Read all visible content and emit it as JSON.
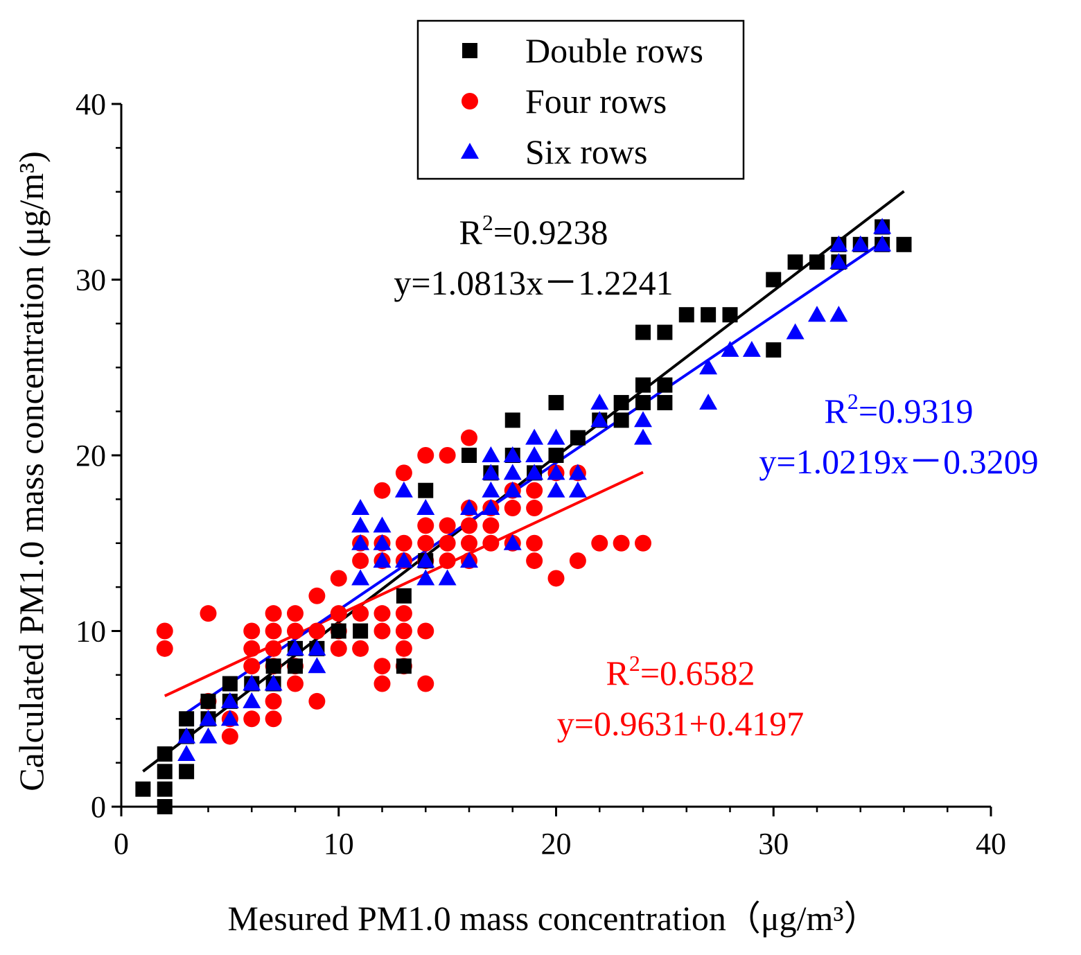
{
  "chart_data": {
    "type": "scatter",
    "xlabel": "Mesured PM1.0  mass concentration（μg/m³）",
    "ylabel": "Calculated PM1.0 mass concentration (μg/m³)",
    "xlim": [
      0,
      40
    ],
    "ylim": [
      0,
      40
    ],
    "xticks": [
      0,
      10,
      20,
      30,
      40
    ],
    "yticks": [
      0,
      10,
      20,
      30,
      40
    ],
    "grid": false,
    "legend_position": "top-center",
    "series": [
      {
        "name": "Double rows",
        "marker": "square",
        "color": "#000000",
        "points": [
          [
            1,
            1
          ],
          [
            2,
            0
          ],
          [
            2,
            1
          ],
          [
            2,
            2
          ],
          [
            2,
            3
          ],
          [
            3,
            2
          ],
          [
            3,
            4
          ],
          [
            3,
            5
          ],
          [
            4,
            5
          ],
          [
            4,
            6
          ],
          [
            5,
            6
          ],
          [
            5,
            7
          ],
          [
            6,
            7
          ],
          [
            7,
            7
          ],
          [
            7,
            8
          ],
          [
            8,
            8
          ],
          [
            8,
            9
          ],
          [
            9,
            9
          ],
          [
            10,
            10
          ],
          [
            11,
            10
          ],
          [
            13,
            8
          ],
          [
            13,
            12
          ],
          [
            14,
            14
          ],
          [
            14,
            18
          ],
          [
            16,
            20
          ],
          [
            17,
            19
          ],
          [
            18,
            22
          ],
          [
            18,
            20
          ],
          [
            19,
            19
          ],
          [
            20,
            20
          ],
          [
            20,
            23
          ],
          [
            21,
            21
          ],
          [
            22,
            22
          ],
          [
            23,
            22
          ],
          [
            23,
            23
          ],
          [
            24,
            23
          ],
          [
            24,
            24
          ],
          [
            24,
            27
          ],
          [
            25,
            23
          ],
          [
            25,
            24
          ],
          [
            25,
            27
          ],
          [
            26,
            28
          ],
          [
            27,
            28
          ],
          [
            28,
            28
          ],
          [
            30,
            26
          ],
          [
            30,
            30
          ],
          [
            31,
            31
          ],
          [
            32,
            31
          ],
          [
            33,
            31
          ],
          [
            33,
            32
          ],
          [
            34,
            32
          ],
          [
            35,
            32
          ],
          [
            35,
            33
          ],
          [
            36,
            32
          ]
        ],
        "fit_line": {
          "x": [
            1,
            36
          ],
          "r2_label": "R²=0.9238",
          "equation": "y=1.0813x－1.2241"
        }
      },
      {
        "name": "Four rows",
        "marker": "circle",
        "color": "#ff0000",
        "points": [
          [
            2,
            9
          ],
          [
            2,
            10
          ],
          [
            4,
            6
          ],
          [
            4,
            11
          ],
          [
            5,
            4
          ],
          [
            5,
            5
          ],
          [
            6,
            5
          ],
          [
            6,
            8
          ],
          [
            6,
            9
          ],
          [
            6,
            10
          ],
          [
            7,
            5
          ],
          [
            7,
            6
          ],
          [
            7,
            8
          ],
          [
            7,
            9
          ],
          [
            7,
            10
          ],
          [
            7,
            11
          ],
          [
            8,
            7
          ],
          [
            8,
            8
          ],
          [
            8,
            10
          ],
          [
            8,
            11
          ],
          [
            9,
            6
          ],
          [
            9,
            10
          ],
          [
            9,
            12
          ],
          [
            10,
            9
          ],
          [
            10,
            10
          ],
          [
            10,
            11
          ],
          [
            10,
            13
          ],
          [
            11,
            9
          ],
          [
            11,
            11
          ],
          [
            11,
            14
          ],
          [
            11,
            15
          ],
          [
            12,
            7
          ],
          [
            12,
            8
          ],
          [
            12,
            10
          ],
          [
            12,
            11
          ],
          [
            12,
            14
          ],
          [
            12,
            15
          ],
          [
            12,
            18
          ],
          [
            13,
            8
          ],
          [
            13,
            9
          ],
          [
            13,
            10
          ],
          [
            13,
            11
          ],
          [
            13,
            14
          ],
          [
            13,
            15
          ],
          [
            13,
            19
          ],
          [
            14,
            7
          ],
          [
            14,
            10
          ],
          [
            14,
            14
          ],
          [
            14,
            15
          ],
          [
            14,
            16
          ],
          [
            14,
            20
          ],
          [
            15,
            14
          ],
          [
            15,
            15
          ],
          [
            15,
            16
          ],
          [
            15,
            20
          ],
          [
            16,
            14
          ],
          [
            16,
            15
          ],
          [
            16,
            16
          ],
          [
            16,
            17
          ],
          [
            16,
            21
          ],
          [
            17,
            15
          ],
          [
            17,
            16
          ],
          [
            17,
            17
          ],
          [
            18,
            15
          ],
          [
            18,
            17
          ],
          [
            18,
            18
          ],
          [
            19,
            14
          ],
          [
            19,
            15
          ],
          [
            19,
            17
          ],
          [
            19,
            18
          ],
          [
            20,
            13
          ],
          [
            20,
            19
          ],
          [
            21,
            14
          ],
          [
            21,
            19
          ],
          [
            22,
            15
          ],
          [
            23,
            15
          ],
          [
            24,
            15
          ]
        ],
        "fit_line": {
          "x": [
            2,
            24
          ],
          "r2_label": "R²=0.6582",
          "equation": "y=0.9631+0.4197"
        }
      },
      {
        "name": "Six rows",
        "marker": "triangle",
        "color": "#0000ff",
        "points": [
          [
            3,
            3
          ],
          [
            3,
            4
          ],
          [
            4,
            4
          ],
          [
            4,
            5
          ],
          [
            5,
            5
          ],
          [
            5,
            6
          ],
          [
            6,
            6
          ],
          [
            6,
            7
          ],
          [
            7,
            7
          ],
          [
            8,
            9
          ],
          [
            9,
            8
          ],
          [
            9,
            9
          ],
          [
            11,
            13
          ],
          [
            11,
            15
          ],
          [
            11,
            16
          ],
          [
            11,
            17
          ],
          [
            12,
            14
          ],
          [
            12,
            15
          ],
          [
            12,
            16
          ],
          [
            13,
            14
          ],
          [
            13,
            18
          ],
          [
            14,
            13
          ],
          [
            14,
            14
          ],
          [
            14,
            17
          ],
          [
            15,
            13
          ],
          [
            16,
            14
          ],
          [
            16,
            17
          ],
          [
            17,
            17
          ],
          [
            17,
            18
          ],
          [
            17,
            19
          ],
          [
            17,
            20
          ],
          [
            18,
            15
          ],
          [
            18,
            18
          ],
          [
            18,
            19
          ],
          [
            18,
            20
          ],
          [
            19,
            19
          ],
          [
            19,
            20
          ],
          [
            19,
            21
          ],
          [
            20,
            18
          ],
          [
            20,
            19
          ],
          [
            20,
            21
          ],
          [
            21,
            18
          ],
          [
            21,
            19
          ],
          [
            22,
            22
          ],
          [
            22,
            23
          ],
          [
            24,
            21
          ],
          [
            24,
            22
          ],
          [
            27,
            23
          ],
          [
            27,
            25
          ],
          [
            28,
            26
          ],
          [
            29,
            26
          ],
          [
            31,
            27
          ],
          [
            32,
            28
          ],
          [
            33,
            28
          ],
          [
            33,
            31
          ],
          [
            33,
            32
          ],
          [
            34,
            32
          ],
          [
            35,
            32
          ],
          [
            35,
            33
          ]
        ],
        "fit_line": {
          "x": [
            3,
            35
          ],
          "r2_label": "R²=0.9319",
          "equation": "y=1.0219x－0.3209"
        }
      }
    ]
  }
}
